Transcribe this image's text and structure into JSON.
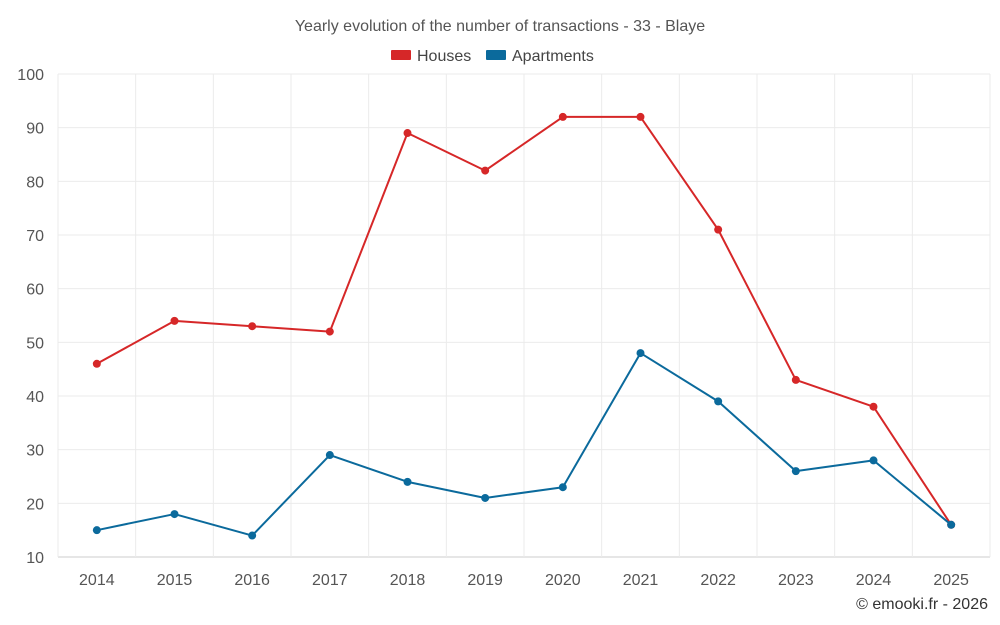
{
  "chart_data": {
    "type": "line",
    "title": "Yearly evolution of the number of transactions - 33 - Blaye",
    "xlabel": "",
    "ylabel": "",
    "categories": [
      "2014",
      "2015",
      "2016",
      "2017",
      "2018",
      "2019",
      "2020",
      "2021",
      "2022",
      "2023",
      "2024",
      "2025"
    ],
    "ylim": [
      10,
      100
    ],
    "yticks": [
      10,
      20,
      30,
      40,
      50,
      60,
      70,
      80,
      90,
      100
    ],
    "grid": true,
    "legend_position": "top-center",
    "series": [
      {
        "name": "Houses",
        "color": "#d62728",
        "values": [
          46,
          54,
          53,
          52,
          89,
          82,
          92,
          92,
          71,
          43,
          38,
          16
        ]
      },
      {
        "name": "Apartments",
        "color": "#0b6a9c",
        "values": [
          15,
          18,
          14,
          29,
          24,
          21,
          23,
          48,
          39,
          26,
          28,
          16
        ]
      }
    ]
  },
  "credit": "© emooki.fr - 2026"
}
